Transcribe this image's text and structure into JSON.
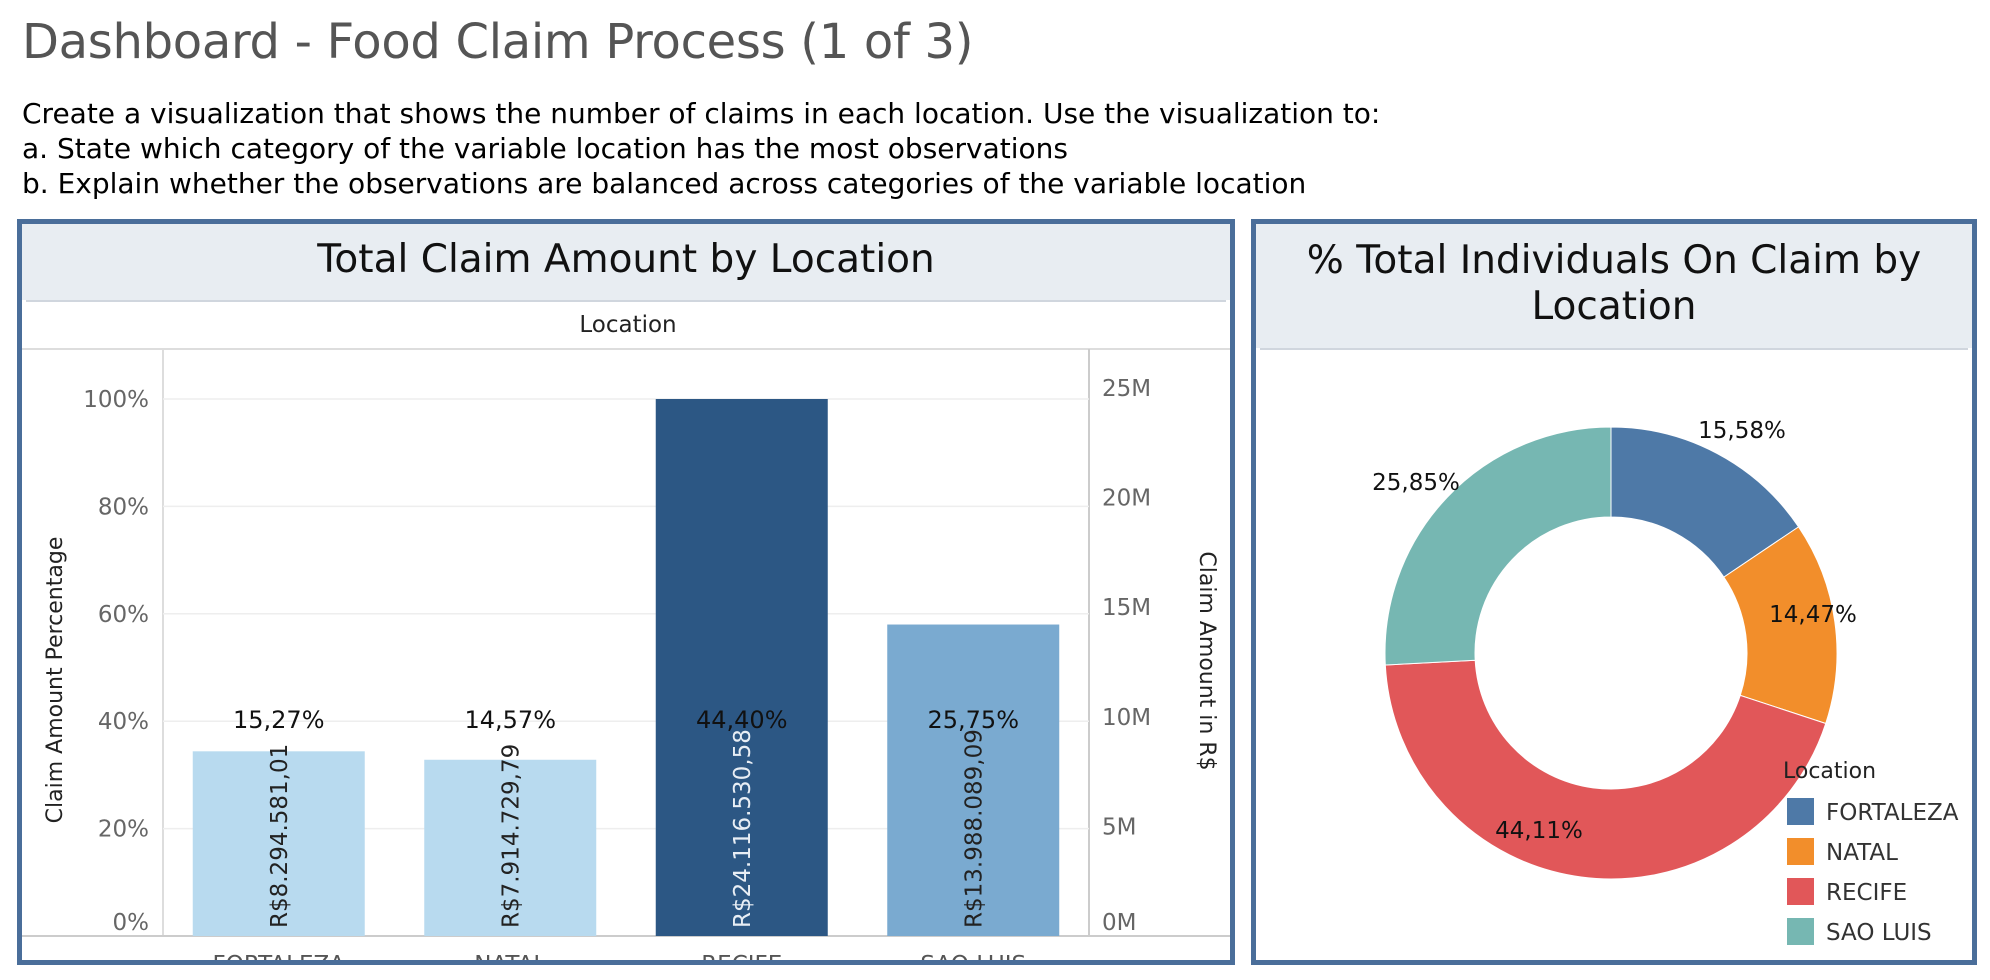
{
  "dashboard": {
    "title": "Dashboard - Food Claim Process (1 of 3)",
    "instructions": [
      "Create a visualization that shows the number of claims in each location. Use the visualization to:",
      "a. State which category of the variable location has the most observations",
      "b. Explain whether the observations are balanced across categories of the variable location"
    ]
  },
  "chart_data": [
    {
      "type": "bar",
      "title": "Total Claim Amount by Location",
      "column_header": "Location",
      "ylabel": "Claim Amount Percentage",
      "y2label": "Claim Amount in R$",
      "ylim": [
        0,
        100
      ],
      "y2lim": [
        0,
        25000000
      ],
      "yticks": [
        "0%",
        "20%",
        "40%",
        "60%",
        "80%",
        "100%"
      ],
      "y2ticks": [
        "0M",
        "5M",
        "10M",
        "15M",
        "20M",
        "25M"
      ],
      "categories": [
        "FORTALEZA",
        "NATAL",
        "RECIFE",
        "SAO LUIS"
      ],
      "values": [
        8294581.01,
        7914729.79,
        24116530.58,
        13988089.09
      ],
      "value_labels": [
        "R$8.294.581,01",
        "R$7.914.729,79",
        "R$24.116.530,58",
        "R$13.988.089,09"
      ],
      "percent_labels": [
        "15,27%",
        "14,57%",
        "44,40%",
        "25,75%"
      ],
      "bar_colors": [
        "#b8daef",
        "#b8daef",
        "#2c5784",
        "#7aaad0"
      ],
      "grid": true
    },
    {
      "type": "pie",
      "title": "% Total Individuals On Claim by Location",
      "legend_title": "Location",
      "legend_position": "bottom-right",
      "categories": [
        "FORTALEZA",
        "NATAL",
        "RECIFE",
        "SAO LUIS"
      ],
      "values": [
        15.58,
        14.47,
        44.11,
        25.85
      ],
      "labels": [
        "15,58%",
        "14,47%",
        "44,11%",
        "25,85%"
      ],
      "colors": [
        "#4e79a7",
        "#f28e2b",
        "#e15759",
        "#76b7b2"
      ]
    }
  ]
}
